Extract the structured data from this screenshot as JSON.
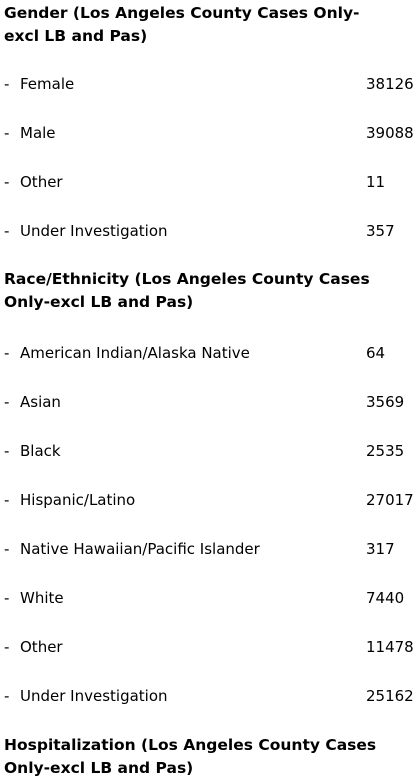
{
  "gender": {
    "heading": "Gender (Los Angeles County Cases Only-excl LB and Pas)",
    "rows": [
      {
        "label": "Female",
        "value": "38126"
      },
      {
        "label": "Male",
        "value": "39088"
      },
      {
        "label": "Other",
        "value": "11"
      },
      {
        "label": "Under Investigation",
        "value": "357"
      }
    ]
  },
  "race": {
    "heading": "Race/Ethnicity (Los Angeles County Cases Only-excl LB and Pas)",
    "rows": [
      {
        "label": "American Indian/Alaska Native",
        "value": "64"
      },
      {
        "label": "Asian",
        "value": "3569"
      },
      {
        "label": "Black",
        "value": "2535"
      },
      {
        "label": "Hispanic/Latino",
        "value": "27017"
      },
      {
        "label": "Native Hawaiian/Pacific Islander",
        "value": "317"
      },
      {
        "label": "White",
        "value": "7440"
      },
      {
        "label": "Other",
        "value": "11478"
      },
      {
        "label": "Under Investigation",
        "value": "25162"
      }
    ]
  },
  "hospitalization": {
    "heading": "Hospitalization (Los Angeles County Cases Only-excl LB and Pas)"
  },
  "list_marker": "-"
}
